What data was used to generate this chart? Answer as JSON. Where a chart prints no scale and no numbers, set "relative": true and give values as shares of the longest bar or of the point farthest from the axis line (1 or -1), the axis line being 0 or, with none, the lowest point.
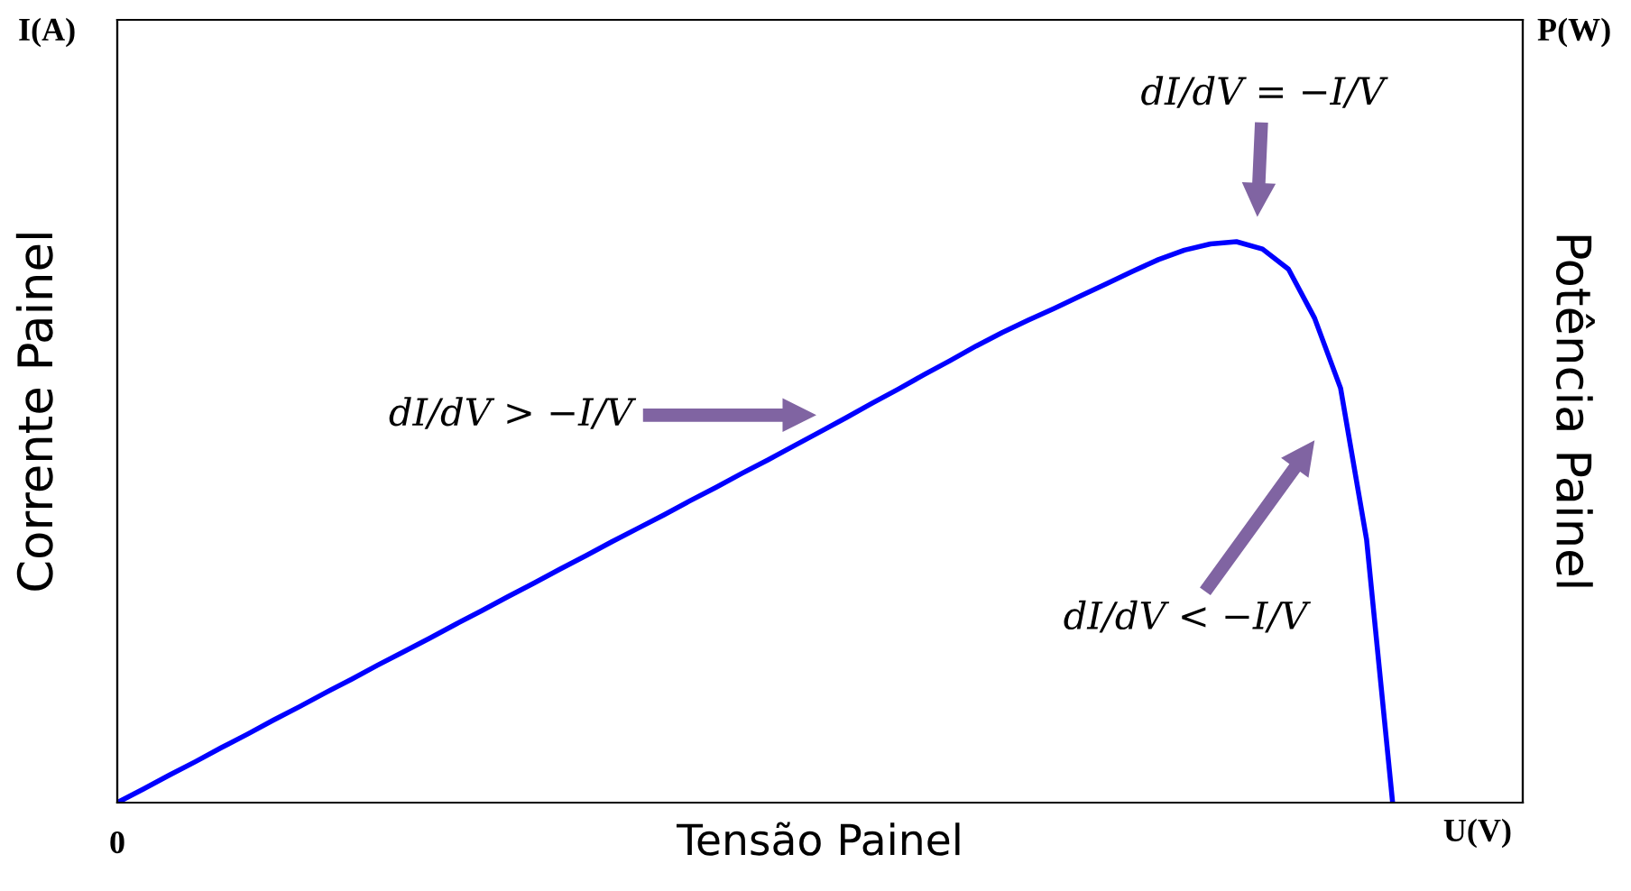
{
  "chart_data": {
    "type": "line",
    "relative": true,
    "xlabel": "Tensão Painel",
    "ylabel": "Corrente Painel",
    "y2label": "Potência Painel",
    "categories": [
      null,
      null,
      null,
      null,
      null,
      null,
      null,
      null,
      null,
      null,
      null,
      null,
      null,
      null,
      null,
      null,
      null,
      null,
      null,
      null,
      null,
      null,
      null,
      null,
      null,
      null,
      null,
      null,
      null,
      null,
      null,
      null,
      null,
      null,
      null,
      null,
      null,
      null,
      null,
      null,
      null,
      null,
      null,
      null,
      null,
      null,
      null,
      null,
      null,
      null,
      null,
      null,
      null,
      null,
      null
    ],
    "series": [
      {
        "color": "#0000ff",
        "values": [
          0,
          0.024,
          0.049,
          0.073,
          0.098,
          0.122,
          0.147,
          0.171,
          0.196,
          0.22,
          0.245,
          0.269,
          0.293,
          0.318,
          0.342,
          0.367,
          0.391,
          0.416,
          0.44,
          0.465,
          0.489,
          0.513,
          0.538,
          0.562,
          0.587,
          0.611,
          0.636,
          0.661,
          0.686,
          0.712,
          0.737,
          0.763,
          0.788,
          0.814,
          0.838,
          0.86,
          0.881,
          0.903,
          0.925,
          0.947,
          0.968,
          0.985,
          0.996,
          1.0,
          0.987,
          0.951,
          0.864,
          0.739,
          0.469,
          0.0,
          null,
          null,
          null,
          null,
          null
        ]
      }
    ],
    "annotations": [
      "dI/dV > −I/V",
      "dI/dV = −I/V",
      "dI/dV < −I/V",
      "I(A)",
      "P(W)",
      "U(V)",
      "0"
    ],
    "grid": false,
    "legend": false,
    "marker": "none",
    "line_style": "solid"
  }
}
